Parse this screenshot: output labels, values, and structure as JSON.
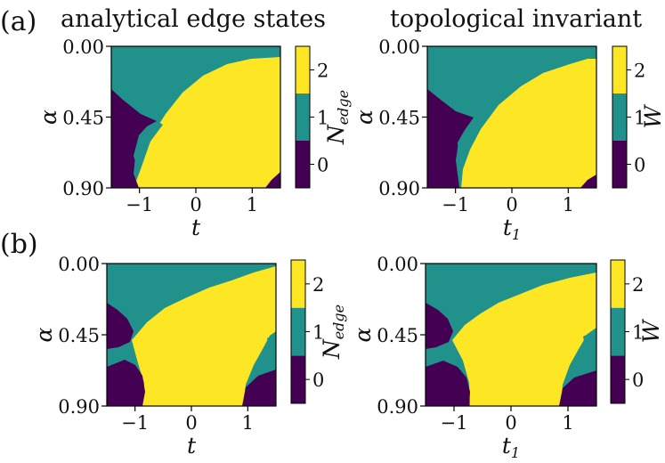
{
  "figure": {
    "row_labels": [
      "(a)",
      "(b)"
    ],
    "col_titles": [
      "analytical edge states",
      "topological invariant"
    ]
  },
  "colors": {
    "purple": "#440154",
    "teal": "#21918c",
    "yellow": "#fde725"
  },
  "chart_data": [
    {
      "type": "heatmap",
      "id": "a-left",
      "row": "(a)",
      "title": "analytical edge states",
      "xlabel": "t",
      "ylabel": "α",
      "xlim": [
        -1.5,
        1.5
      ],
      "ylim": [
        0.0,
        0.9
      ],
      "xticks": [
        -1,
        0,
        1
      ],
      "yticks": [
        "0.00",
        "0.45",
        "0.90"
      ],
      "colorbar_label": "N",
      "colorbar_label_sub": "edge",
      "colorbar_ticks": [
        0,
        1,
        2
      ],
      "levels": [
        0,
        1,
        2
      ],
      "level_colors": [
        "#440154",
        "#21918c",
        "#fde725"
      ],
      "regions": [
        {
          "value": 1,
          "description": "background top"
        },
        {
          "value": 2,
          "description": "central dome from t≈-0.9 to t≈1.5, α>0.05"
        },
        {
          "value": 0,
          "description": "lower-left lobe t<-0.9, α>0.3"
        },
        {
          "value": 1,
          "description": "small teal wedge near t≈-1, α≈0.55"
        },
        {
          "value": 0,
          "description": "lower-right corner t>1.2, α>0.8"
        }
      ]
    },
    {
      "type": "heatmap",
      "id": "a-right",
      "row": "(a)",
      "title": "topological invariant",
      "xlabel": "t",
      "xlabel_sub": "1",
      "ylabel": "α",
      "xlim": [
        -1.5,
        1.5
      ],
      "ylim": [
        0.0,
        0.9
      ],
      "xticks": [
        -1,
        0,
        1
      ],
      "yticks": [
        "0.00",
        "0.45",
        "0.90"
      ],
      "colorbar_label": "W",
      "colorbar_ticks": [
        0,
        1,
        2
      ],
      "levels": [
        0,
        1,
        2
      ],
      "level_colors": [
        "#440154",
        "#21918c",
        "#fde725"
      ]
    },
    {
      "type": "heatmap",
      "id": "b-left",
      "row": "(b)",
      "xlabel": "t",
      "ylabel": "α",
      "xlim": [
        -1.5,
        1.5
      ],
      "ylim": [
        0.0,
        0.9
      ],
      "xticks": [
        -1,
        0,
        1
      ],
      "yticks": [
        "0.00",
        "0.45",
        "0.90"
      ],
      "colorbar_label": "N",
      "colorbar_label_sub": "edge",
      "colorbar_ticks": [
        0,
        1,
        2
      ],
      "levels": [
        0,
        1,
        2
      ],
      "level_colors": [
        "#440154",
        "#21918c",
        "#fde725"
      ]
    },
    {
      "type": "heatmap",
      "id": "b-right",
      "row": "(b)",
      "xlabel": "t",
      "xlabel_sub": "1",
      "ylabel": "α",
      "xlim": [
        -1.5,
        1.5
      ],
      "ylim": [
        0.0,
        0.9
      ],
      "xticks": [
        -1,
        0,
        1
      ],
      "yticks": [
        "0.00",
        "0.45",
        "0.90"
      ],
      "colorbar_label": "W",
      "colorbar_ticks": [
        0,
        1,
        2
      ],
      "levels": [
        0,
        1,
        2
      ],
      "level_colors": [
        "#440154",
        "#21918c",
        "#fde725"
      ]
    }
  ]
}
